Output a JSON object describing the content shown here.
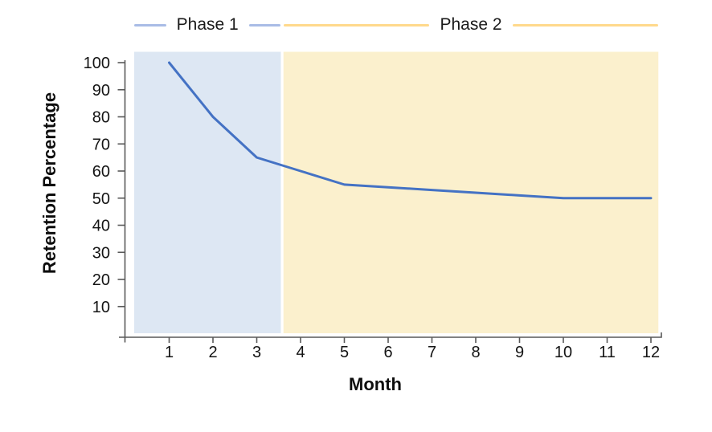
{
  "legend": {
    "items": [
      {
        "label": "Phase 1",
        "color": "#a9bce6"
      },
      {
        "label": "Phase 2",
        "color": "#ffd98c"
      }
    ]
  },
  "chart_data": {
    "type": "line",
    "title": "",
    "xlabel": "Month",
    "ylabel": "Retention Percentage",
    "x": [
      1,
      2,
      3,
      4,
      5,
      6,
      7,
      8,
      9,
      10,
      11,
      12
    ],
    "series": [
      {
        "name": "Retention",
        "color": "#4472c4",
        "line_width": 3,
        "values": [
          100,
          80,
          65,
          60,
          55,
          54,
          53,
          52,
          51,
          50,
          50,
          50
        ]
      }
    ],
    "xticks": [
      1,
      2,
      3,
      4,
      5,
      6,
      7,
      8,
      9,
      10,
      11,
      12
    ],
    "yticks": [
      10,
      20,
      30,
      40,
      50,
      60,
      70,
      80,
      90,
      100
    ],
    "xlim": [
      0,
      12.25
    ],
    "ylim": [
      0,
      100
    ],
    "grid": false,
    "legend_position": "top",
    "axis_color": "#595959",
    "text_color": "#141414",
    "regions": [
      {
        "name": "Phase 1",
        "fill": "#dde7f3",
        "x_start": 0.2,
        "x_end": 3.55,
        "y_top": 104
      },
      {
        "name": "Phase 2",
        "fill": "#fbf0cd",
        "x_start": 3.61,
        "x_end": 12.17,
        "y_top": 104
      }
    ]
  }
}
